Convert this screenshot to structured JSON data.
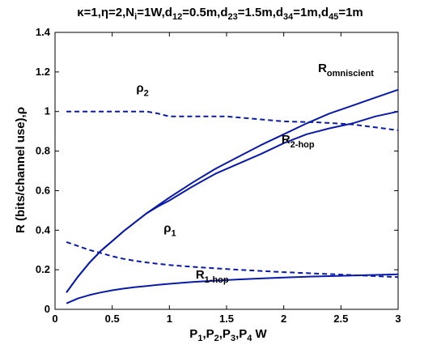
{
  "chart_data": {
    "type": "line",
    "title": {
      "segments": [
        {
          "t": "κ=1,η=2,N"
        },
        {
          "t": "i",
          "sub": true
        },
        {
          "t": "=1W,d"
        },
        {
          "t": "12",
          "sub": true
        },
        {
          "t": "=0.5m,d"
        },
        {
          "t": "23",
          "sub": true
        },
        {
          "t": "=1.5m,d"
        },
        {
          "t": "34",
          "sub": true
        },
        {
          "t": "=1m,d"
        },
        {
          "t": "45",
          "sub": true
        },
        {
          "t": "=1m"
        }
      ]
    },
    "xlabel": {
      "segments": [
        {
          "t": "P"
        },
        {
          "t": "1",
          "sub": true
        },
        {
          "t": ",P"
        },
        {
          "t": "2",
          "sub": true
        },
        {
          "t": ",P"
        },
        {
          "t": "3",
          "sub": true
        },
        {
          "t": ",P"
        },
        {
          "t": "4",
          "sub": true
        },
        {
          "t": " W"
        }
      ]
    },
    "ylabel": "R (bits/channel use),ρ",
    "xlim": [
      0,
      3
    ],
    "ylim": [
      0,
      1.4
    ],
    "xticks": [
      "0",
      "0.5",
      "1",
      "1.5",
      "2",
      "2.5",
      "3"
    ],
    "yticks": [
      "0",
      "0.2",
      "0.4",
      "0.6",
      "0.8",
      "1",
      "1.2",
      "1.4"
    ],
    "grid": false,
    "series": [
      {
        "name": "R_omniscient",
        "style": "solid",
        "color": "#0a1aa8",
        "x": [
          0.1,
          0.2,
          0.3,
          0.4,
          0.5,
          0.6,
          0.7,
          0.8,
          0.9,
          1.0,
          1.2,
          1.4,
          1.6,
          1.8,
          2.0,
          2.2,
          2.4,
          2.6,
          2.8,
          3.0
        ],
        "y": [
          0.085,
          0.165,
          0.235,
          0.295,
          0.345,
          0.395,
          0.44,
          0.485,
          0.525,
          0.565,
          0.64,
          0.71,
          0.77,
          0.83,
          0.885,
          0.94,
          0.99,
          1.03,
          1.07,
          1.11
        ]
      },
      {
        "name": "R_2-hop",
        "style": "solid",
        "color": "#0a1aa8",
        "x": [
          0.1,
          0.2,
          0.3,
          0.4,
          0.5,
          0.6,
          0.7,
          0.8,
          0.9,
          1.0,
          1.2,
          1.4,
          1.6,
          1.8,
          2.0,
          2.2,
          2.4,
          2.6,
          2.8,
          3.0
        ],
        "y": [
          0.085,
          0.165,
          0.235,
          0.295,
          0.345,
          0.395,
          0.44,
          0.485,
          0.52,
          0.55,
          0.62,
          0.685,
          0.735,
          0.785,
          0.84,
          0.885,
          0.915,
          0.94,
          0.975,
          1.0
        ]
      },
      {
        "name": "R_1-hop",
        "style": "solid",
        "color": "#0a1aa8",
        "x": [
          0.1,
          0.2,
          0.3,
          0.4,
          0.5,
          0.6,
          0.7,
          0.8,
          0.9,
          1.0,
          1.2,
          1.4,
          1.6,
          1.8,
          2.0,
          2.2,
          2.4,
          2.6,
          2.8,
          3.0
        ],
        "y": [
          0.03,
          0.055,
          0.072,
          0.085,
          0.096,
          0.105,
          0.112,
          0.118,
          0.124,
          0.129,
          0.138,
          0.145,
          0.151,
          0.156,
          0.161,
          0.165,
          0.168,
          0.171,
          0.174,
          0.177
        ]
      },
      {
        "name": "ρ_2",
        "style": "dashed",
        "color": "#0a1aa8",
        "x": [
          0.1,
          0.5,
          0.8,
          0.9,
          1.0,
          1.2,
          1.5,
          1.8,
          2.0,
          2.3,
          2.6,
          3.0
        ],
        "y": [
          1.0,
          1.0,
          1.0,
          0.99,
          0.975,
          0.975,
          0.975,
          0.96,
          0.95,
          0.945,
          0.935,
          0.905
        ]
      },
      {
        "name": "ρ_1",
        "style": "dashed",
        "color": "#0a1aa8",
        "x": [
          0.1,
          0.2,
          0.3,
          0.4,
          0.5,
          0.6,
          0.7,
          0.8,
          0.9,
          1.0,
          1.2,
          1.4,
          1.6,
          1.8,
          2.0,
          2.2,
          2.4,
          2.6,
          2.8,
          3.0
        ],
        "y": [
          0.34,
          0.32,
          0.3,
          0.285,
          0.268,
          0.255,
          0.245,
          0.237,
          0.23,
          0.224,
          0.215,
          0.207,
          0.2,
          0.194,
          0.188,
          0.183,
          0.178,
          0.173,
          0.168,
          0.163
        ]
      }
    ],
    "annotations": [
      {
        "main": "R",
        "sub": "omniscient",
        "x": 2.3,
        "y": 1.2
      },
      {
        "main": "R",
        "sub": "2-hop",
        "x": 1.98,
        "y": 0.84
      },
      {
        "main": "R",
        "sub": "1-hop",
        "x": 1.23,
        "y": 0.155
      },
      {
        "main": "ρ",
        "sub": "2",
        "x": 0.71,
        "y": 1.1
      },
      {
        "main": "ρ",
        "sub": "1",
        "x": 0.95,
        "y": 0.39
      }
    ]
  }
}
